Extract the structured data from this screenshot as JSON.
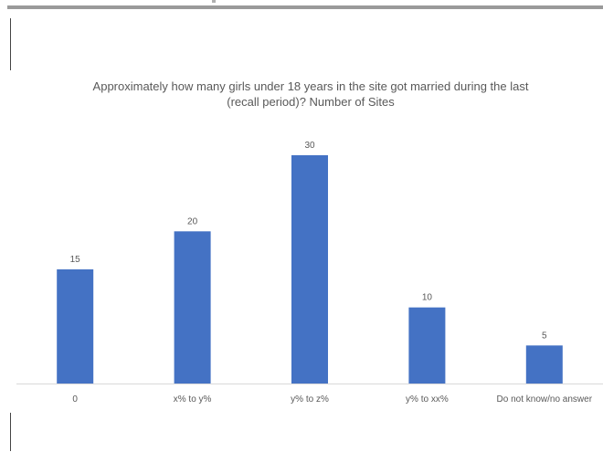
{
  "chart_data": {
    "type": "bar",
    "title_lines": [
      "Approximately how many girls under 18 years in the site got married during the last",
      "(recall period)? Number of Sites"
    ],
    "categories": [
      "0",
      "x% to y%",
      "y% to z%",
      "y% to xx%",
      "Do not know/no answer"
    ],
    "values": [
      15,
      20,
      30,
      10,
      5
    ],
    "data_labels": [
      "15",
      "20",
      "30",
      "10",
      "5"
    ],
    "ylim": [
      0,
      30
    ],
    "grid": false,
    "legend": "none",
    "bar_color": "#4472C4",
    "axis_color": "#d9d9d9",
    "label_color": "#595959"
  }
}
